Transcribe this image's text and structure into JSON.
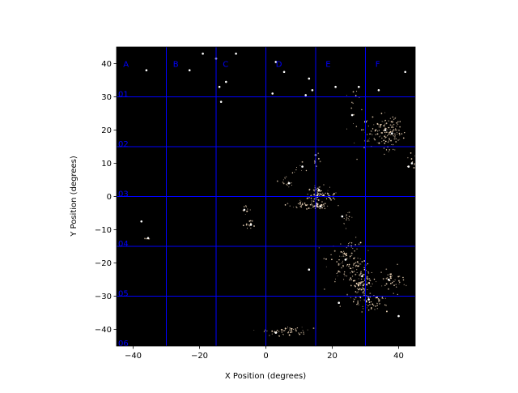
{
  "chart_data": {
    "type": "scatter",
    "title": "",
    "xlabel": "X Position (degrees)",
    "ylabel": "Y Position (degrees)",
    "xlim": [
      -45,
      45
    ],
    "ylim": [
      -45,
      45
    ],
    "xticks": [
      -40,
      -20,
      0,
      20,
      40
    ],
    "yticks": [
      -40,
      -30,
      -20,
      -10,
      0,
      10,
      20,
      30,
      40
    ],
    "background": "#000000",
    "grid": {
      "color": "#0000ff",
      "vertical_lines": [
        -30,
        -15,
        0,
        15,
        30
      ],
      "horizontal_lines": [
        30,
        15,
        0,
        -15,
        -30
      ],
      "column_labels": [
        {
          "text": "A",
          "x": -43,
          "y": 40
        },
        {
          "text": "B",
          "x": -28,
          "y": 40
        },
        {
          "text": "C",
          "x": -13,
          "y": 40
        },
        {
          "text": "D",
          "x": 3,
          "y": 40
        },
        {
          "text": "E",
          "x": 18,
          "y": 40
        },
        {
          "text": "F",
          "x": 33,
          "y": 40
        }
      ],
      "row_labels": [
        {
          "text": "01",
          "x": -44.5,
          "y": 31
        },
        {
          "text": "02",
          "x": -44.5,
          "y": 16
        },
        {
          "text": "03",
          "x": -44.5,
          "y": 1
        },
        {
          "text": "04",
          "x": -44.5,
          "y": -14
        },
        {
          "text": "05",
          "x": -44.5,
          "y": -29
        },
        {
          "text": "06",
          "x": -44.5,
          "y": -44
        }
      ]
    },
    "star_color": "#ffe4c4",
    "bright_stars": [
      {
        "x": -36,
        "y": 38
      },
      {
        "x": -23,
        "y": 38
      },
      {
        "x": -19,
        "y": 43
      },
      {
        "x": -15,
        "y": 41.5
      },
      {
        "x": -9,
        "y": 43
      },
      {
        "x": -12,
        "y": 34.5
      },
      {
        "x": -14,
        "y": 33
      },
      {
        "x": -13.5,
        "y": 28.5
      },
      {
        "x": 3,
        "y": 40.5
      },
      {
        "x": 5.5,
        "y": 37.5
      },
      {
        "x": 13,
        "y": 35.5
      },
      {
        "x": 12,
        "y": 30.5
      },
      {
        "x": 21,
        "y": 33
      },
      {
        "x": 28,
        "y": 33
      },
      {
        "x": 34,
        "y": 32
      },
      {
        "x": 42,
        "y": 37.5
      },
      {
        "x": 2,
        "y": 31
      },
      {
        "x": 14,
        "y": 32
      },
      {
        "x": 30,
        "y": 22.5
      },
      {
        "x": 26,
        "y": 24.5
      },
      {
        "x": 16,
        "y": 2
      },
      {
        "x": 15.5,
        "y": 0
      },
      {
        "x": 16.5,
        "y": -3
      },
      {
        "x": 19,
        "y": 0
      },
      {
        "x": 36,
        "y": 20
      },
      {
        "x": 38,
        "y": 19
      },
      {
        "x": 31,
        "y": -31
      },
      {
        "x": 29,
        "y": -24
      },
      {
        "x": 24,
        "y": -19
      },
      {
        "x": 37,
        "y": -25
      },
      {
        "x": 7,
        "y": 4
      },
      {
        "x": 3,
        "y": -41
      },
      {
        "x": -37.5,
        "y": -7.5
      },
      {
        "x": -35.5,
        "y": -12.5
      },
      {
        "x": -6.5,
        "y": -4
      },
      {
        "x": -4.5,
        "y": -8.5
      },
      {
        "x": 44,
        "y": 10
      },
      {
        "x": 43,
        "y": 9
      },
      {
        "x": 11,
        "y": 9
      },
      {
        "x": 15,
        "y": 12.5
      },
      {
        "x": 13,
        "y": -22
      },
      {
        "x": 23,
        "y": -6
      },
      {
        "x": 22,
        "y": -32
      },
      {
        "x": 40,
        "y": -36
      }
    ],
    "clusters": [
      {
        "cx": 36.5,
        "cy": 19,
        "sx": 2.6,
        "sy": 2.4,
        "n": 120
      },
      {
        "cx": 38,
        "cy": 23,
        "sx": 1.0,
        "sy": 1.0,
        "n": 12
      },
      {
        "cx": 16,
        "cy": 0.5,
        "sx": 1.6,
        "sy": 1.3,
        "n": 70
      },
      {
        "cx": 12,
        "cy": -2.5,
        "sx": 3.0,
        "sy": 0.6,
        "n": 45
      },
      {
        "cx": 19.5,
        "cy": 0,
        "sx": 1.0,
        "sy": 0.7,
        "n": 18
      },
      {
        "cx": 16,
        "cy": -3,
        "sx": 1.2,
        "sy": 0.4,
        "n": 22
      },
      {
        "cx": 24,
        "cy": -19,
        "sx": 2.8,
        "sy": 3.5,
        "n": 110
      },
      {
        "cx": 29,
        "cy": -26,
        "sx": 1.8,
        "sy": 3.0,
        "n": 110
      },
      {
        "cx": 32,
        "cy": -32,
        "sx": 2.2,
        "sy": 1.2,
        "n": 55
      },
      {
        "cx": 38,
        "cy": -25,
        "sx": 2.0,
        "sy": 2.0,
        "n": 45
      },
      {
        "cx": 6,
        "cy": -40.5,
        "sx": 3.2,
        "sy": 0.7,
        "n": 60
      },
      {
        "cx": 24.5,
        "cy": -6.5,
        "sx": 0.8,
        "sy": 1.0,
        "n": 14
      },
      {
        "cx": -6,
        "cy": -4,
        "sx": 0.8,
        "sy": 0.8,
        "n": 12
      },
      {
        "cx": -4.5,
        "cy": -8.5,
        "sx": 0.8,
        "sy": 0.9,
        "n": 14
      },
      {
        "cx": 6.5,
        "cy": 4.5,
        "sx": 0.8,
        "sy": 0.8,
        "n": 14
      },
      {
        "cx": 27,
        "cy": 26,
        "sx": 1.5,
        "sy": 4.5,
        "n": 14
      },
      {
        "cx": 44,
        "cy": 10,
        "sx": 0.8,
        "sy": 1.4,
        "n": 12
      },
      {
        "cx": 30,
        "cy": 20,
        "sx": 2.0,
        "sy": 3.0,
        "n": 18
      },
      {
        "cx": -35.5,
        "cy": -12.5,
        "sx": 0.4,
        "sy": 0.6,
        "n": 5
      },
      {
        "cx": 15,
        "cy": 11,
        "sx": 0.5,
        "sy": 1.5,
        "n": 8
      },
      {
        "cx": 10,
        "cy": 8,
        "sx": 1.5,
        "sy": 1.5,
        "n": 8
      }
    ]
  }
}
